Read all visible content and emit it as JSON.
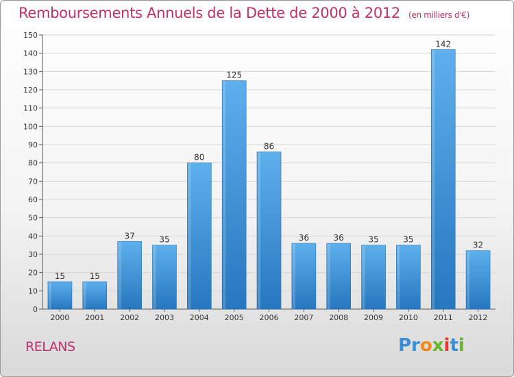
{
  "chart_data": {
    "type": "bar",
    "title": "Remboursements Annuels de la Dette de 2000 à 2012",
    "unit_note": "(en milliers d'€)",
    "categories": [
      "2000",
      "2001",
      "2002",
      "2003",
      "2004",
      "2005",
      "2006",
      "2007",
      "2008",
      "2009",
      "2010",
      "2011",
      "2012"
    ],
    "values": [
      15,
      15,
      37,
      35,
      80,
      125,
      86,
      36,
      36,
      35,
      35,
      142,
      32
    ],
    "ylim": [
      0,
      150
    ],
    "yticks": [
      0,
      10,
      20,
      30,
      40,
      50,
      60,
      70,
      80,
      90,
      100,
      110,
      120,
      130,
      140,
      150
    ],
    "xlabel": "",
    "ylabel": "",
    "grid": true,
    "bar_color": "#4aa3e6",
    "bar_color_dark": "#2a7cc4"
  },
  "footer": {
    "town": "RELANS",
    "logo_parts": [
      "Pr",
      "o",
      "x",
      "i",
      "t",
      "i"
    ]
  }
}
